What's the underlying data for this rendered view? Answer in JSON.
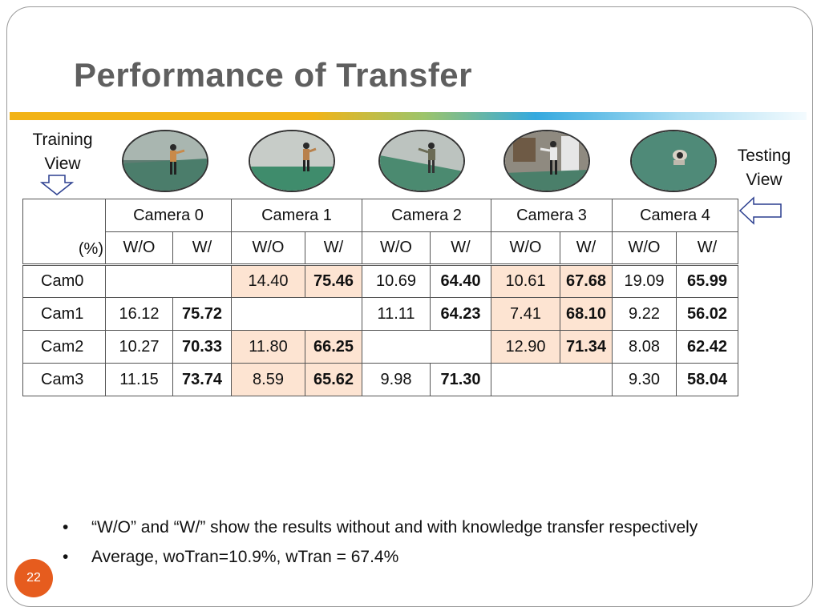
{
  "slide": {
    "title": "Performance of Transfer",
    "training_label": "Training View",
    "testing_label": "Testing View",
    "page_number": "22",
    "accent_colors": {
      "gold": "#f2b316",
      "blue": "#34a9df",
      "highlight": "#fde4d2",
      "badge": "#e65c1e"
    }
  },
  "thumbnails": [
    {
      "icon": "camera-0-view-image"
    },
    {
      "icon": "camera-1-view-image"
    },
    {
      "icon": "camera-2-view-image"
    },
    {
      "icon": "camera-3-view-image"
    },
    {
      "icon": "camera-4-view-image"
    }
  ],
  "table": {
    "unit_label": "(%)",
    "cameras": [
      "Camera 0",
      "Camera 1",
      "Camera 2",
      "Camera 3",
      "Camera 4"
    ],
    "sub_headers": [
      "W/O",
      "W/",
      "W/O",
      "W/",
      "W/O",
      "W/",
      "W/O",
      "W/",
      "W/O",
      "W/"
    ],
    "rows": [
      {
        "label": "Cam0",
        "cells": [
          "",
          "",
          "14.40",
          "75.46",
          "10.69",
          "64.40",
          "10.61",
          "67.68",
          "19.09",
          "65.99"
        ]
      },
      {
        "label": "Cam1",
        "cells": [
          "16.12",
          "75.72",
          "",
          "",
          "11.11",
          "64.23",
          "7.41",
          "68.10",
          "9.22",
          "56.02"
        ]
      },
      {
        "label": "Cam2",
        "cells": [
          "10.27",
          "70.33",
          "11.80",
          "66.25",
          "",
          "",
          "12.90",
          "71.34",
          "8.08",
          "62.42"
        ]
      },
      {
        "label": "Cam3",
        "cells": [
          "11.15",
          "73.74",
          "8.59",
          "65.62",
          "9.98",
          "71.30",
          "",
          "",
          "9.30",
          "58.04"
        ]
      }
    ]
  },
  "bullets": [
    "“W/O” and “W/” show the results without and with knowledge transfer respectively",
    "Average, woTran=10.9%, wTran = 67.4%"
  ]
}
